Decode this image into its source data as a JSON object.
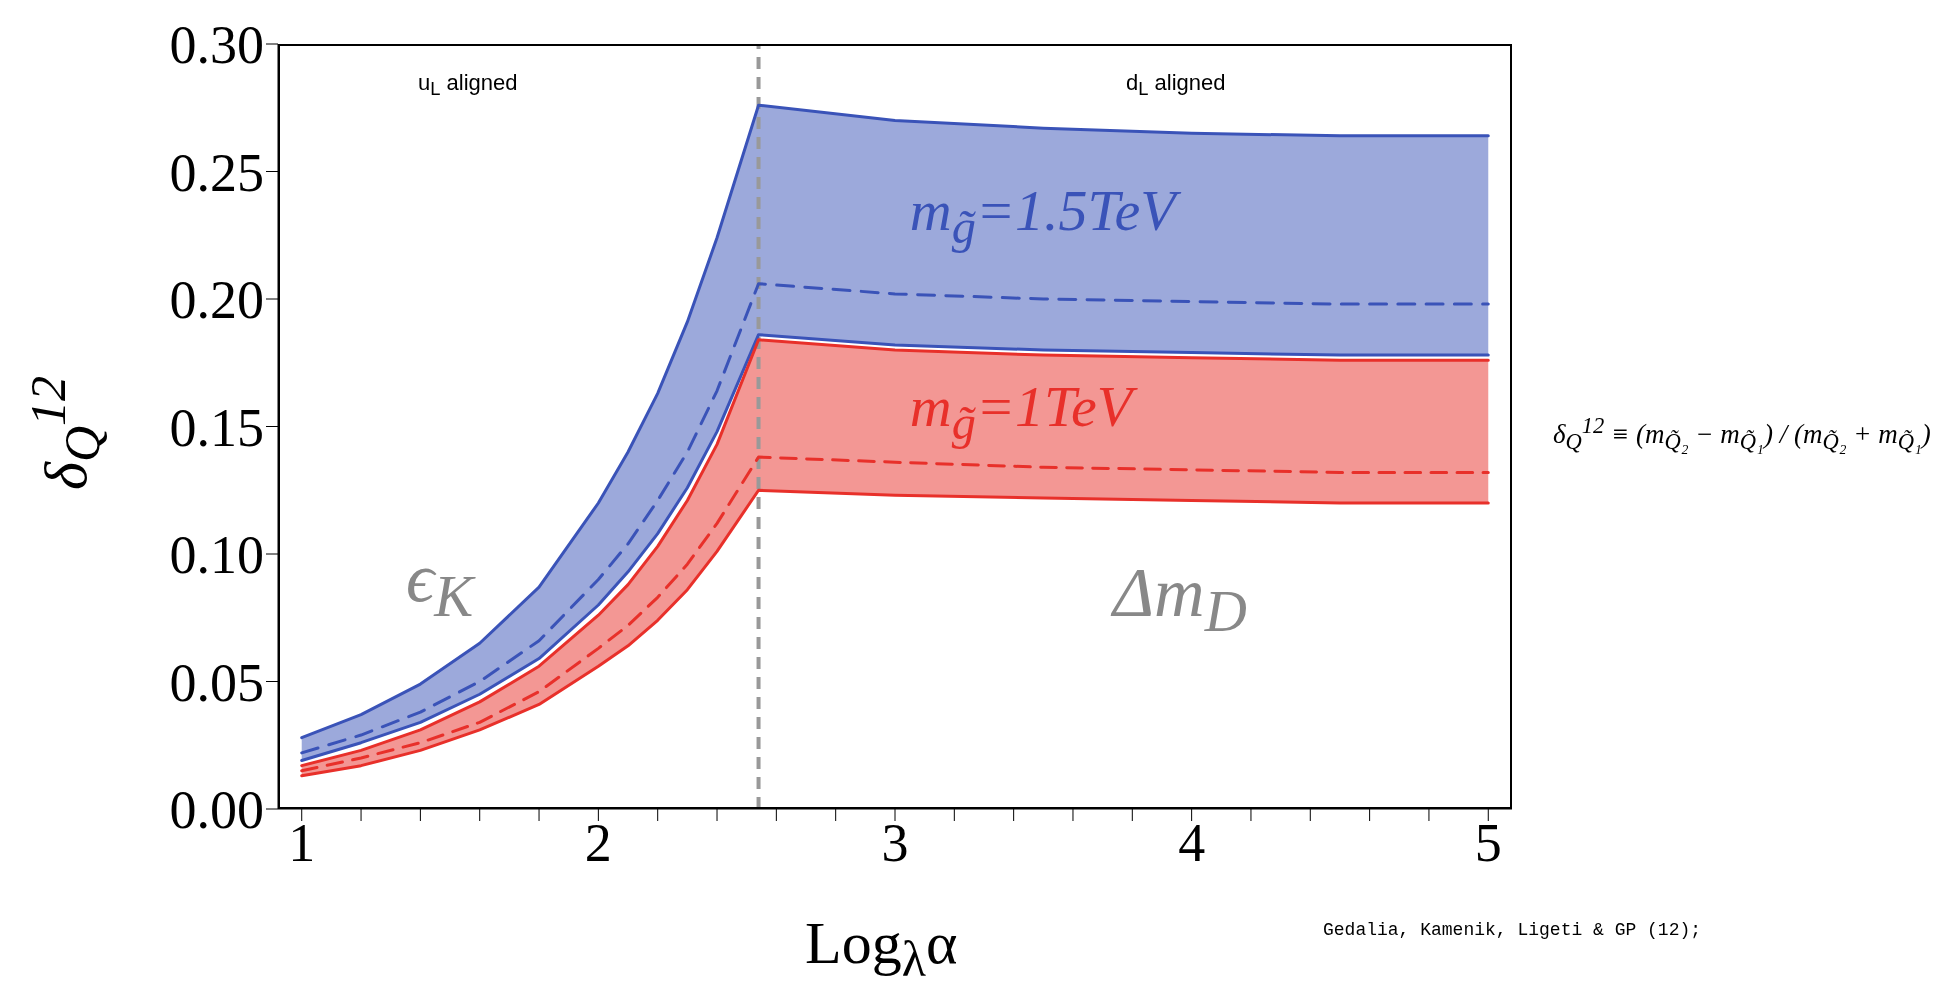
{
  "chart_data": {
    "type": "line",
    "xlabel": "Log$_{λ}$α",
    "ylabel": "δ$_{Q}$$^{12}$",
    "x": [
      1,
      1.2,
      1.4,
      1.6,
      1.8,
      2,
      2.1,
      2.2,
      2.3,
      2.4,
      2.54,
      3,
      3.5,
      4,
      4.5,
      5
    ],
    "series": [
      {
        "color": "#3a53b8",
        "values": [
          0.028,
          0.037,
          0.049,
          0.065,
          0.087,
          0.12,
          0.14,
          0.163,
          0.191,
          0.224,
          0.276,
          0.27,
          0.267,
          0.265,
          0.264,
          0.264
        ]
      },
      {
        "name": "m$_{g̃}$=1.5TeV",
        "color": "#3a53b8",
        "line_style": "dashed",
        "values": [
          0.022,
          0.029,
          0.038,
          0.05,
          0.066,
          0.09,
          0.104,
          0.121,
          0.14,
          0.164,
          0.206,
          0.202,
          0.2,
          0.199,
          0.198,
          0.198
        ],
        "lower": [
          0.019,
          0.026,
          0.034,
          0.045,
          0.059,
          0.08,
          0.093,
          0.108,
          0.126,
          0.148,
          0.186,
          0.182,
          0.18,
          0.179,
          0.178,
          0.178
        ],
        "upper": [
          0.028,
          0.037,
          0.049,
          0.065,
          0.087,
          0.12,
          0.14,
          0.163,
          0.191,
          0.224,
          0.276,
          0.27,
          0.267,
          0.265,
          0.264,
          0.264
        ]
      },
      {
        "color": "#3a53b8",
        "values": [
          0.019,
          0.026,
          0.034,
          0.045,
          0.059,
          0.08,
          0.093,
          0.108,
          0.126,
          0.148,
          0.186,
          0.182,
          0.18,
          0.179,
          0.178,
          0.178
        ]
      },
      {
        "color": "#e8302a",
        "values": [
          0.017,
          0.023,
          0.031,
          0.042,
          0.056,
          0.076,
          0.088,
          0.103,
          0.121,
          0.143,
          0.184,
          0.18,
          0.178,
          0.177,
          0.176,
          0.176
        ]
      },
      {
        "name": "m$_{g̃}$=1TeV",
        "color": "#e8302a",
        "line_style": "dashed",
        "values": [
          0.015,
          0.02,
          0.026,
          0.034,
          0.046,
          0.063,
          0.072,
          0.083,
          0.096,
          0.112,
          0.138,
          0.136,
          0.134,
          0.133,
          0.132,
          0.132
        ],
        "lower": [
          0.013,
          0.017,
          0.023,
          0.031,
          0.041,
          0.056,
          0.064,
          0.074,
          0.086,
          0.101,
          0.125,
          0.123,
          0.122,
          0.121,
          0.12,
          0.12
        ],
        "upper": [
          0.017,
          0.023,
          0.031,
          0.042,
          0.056,
          0.076,
          0.088,
          0.103,
          0.121,
          0.143,
          0.184,
          0.18,
          0.178,
          0.177,
          0.176,
          0.176
        ]
      },
      {
        "color": "#e8302a",
        "values": [
          0.013,
          0.017,
          0.023,
          0.031,
          0.041,
          0.056,
          0.064,
          0.074,
          0.086,
          0.101,
          0.125,
          0.123,
          0.122,
          0.121,
          0.12,
          0.12
        ]
      }
    ],
    "xlim": [
      0.92,
      5.08
    ],
    "xticks": [
      1,
      {
        "value": 1.2,
        "label": null
      },
      {
        "value": 1.4,
        "label": null
      },
      {
        "value": 1.6,
        "label": null
      },
      {
        "value": 1.8,
        "label": null
      },
      2,
      {
        "value": 2.2,
        "label": null
      },
      {
        "value": 2.4,
        "label": null
      },
      {
        "value": 2.6,
        "label": null
      },
      {
        "value": 2.8,
        "label": null
      },
      3,
      {
        "value": 3.2,
        "label": null
      },
      {
        "value": 3.4,
        "label": null
      },
      {
        "value": 3.6,
        "label": null
      },
      {
        "value": 3.8,
        "label": null
      },
      4,
      {
        "value": 4.2,
        "label": null
      },
      {
        "value": 4.4,
        "label": null
      },
      {
        "value": 4.6,
        "label": null
      },
      {
        "value": 4.8,
        "label": null
      },
      5
    ],
    "ylim": [
      0,
      0.3
    ],
    "yticks": [
      {
        "value": 0,
        "label": "0.00"
      },
      {
        "value": 0.05,
        "label": "0.05"
      },
      {
        "value": 0.1,
        "label": "0.10"
      },
      {
        "value": 0.15,
        "label": "0.15"
      },
      {
        "value": 0.2,
        "label": "0.20"
      },
      {
        "value": 0.25,
        "label": "0.25"
      },
      {
        "value": 0.3,
        "label": "0.30"
      }
    ],
    "ref_lines": [
      {
        "axis": "x",
        "value": 2.54,
        "color": "#999999",
        "line_style": "dashed"
      }
    ],
    "annotations": [
      "u$_{L}$ aligned",
      "d$_{L}$ aligned",
      "ϵ$_{K}$",
      "Δm$_{D}$",
      "δ$_{Q}$$^{12}$ ≡ (m$_{Q̃₂}$ − m$_{Q̃₁}$) / (m$_{Q̃₂}$ + m$_{Q̃₁}$)",
      "Gedalia, Kamenik, Ligeti & GP (12);"
    ],
    "grid": false,
    "legend": false
  }
}
